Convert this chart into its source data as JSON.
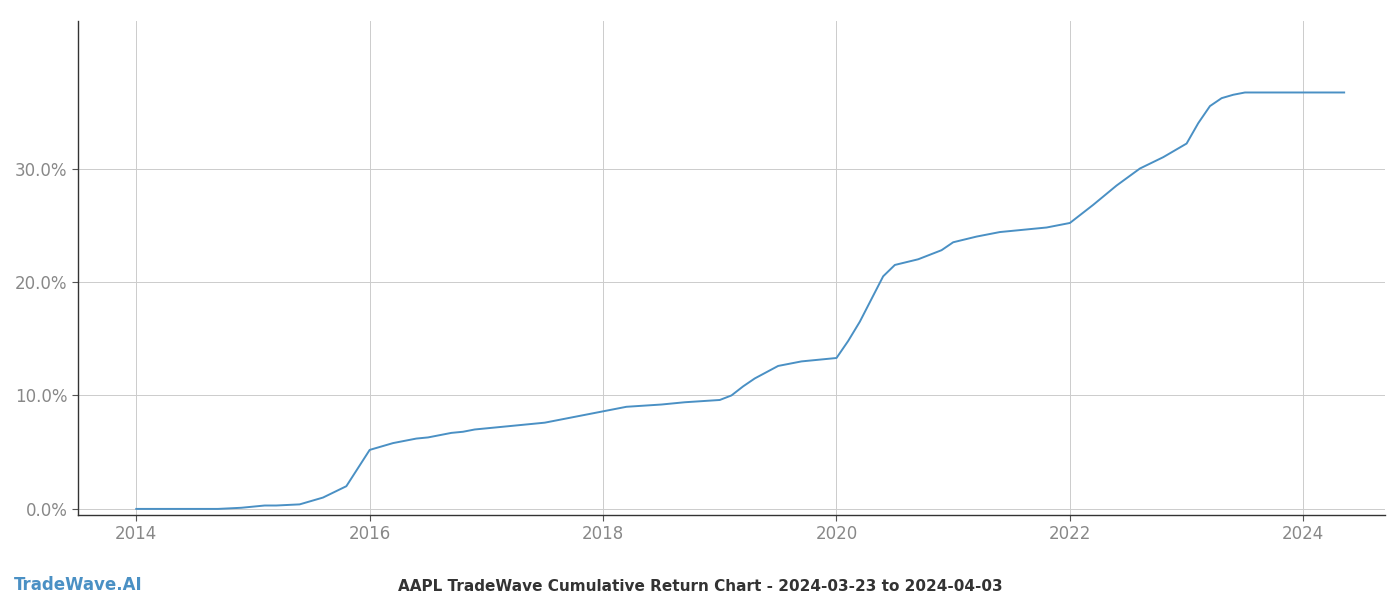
{
  "title": "AAPL TradeWave Cumulative Return Chart - 2024-03-23 to 2024-04-03",
  "watermark": "TradeWave.AI",
  "line_color": "#4a90c4",
  "background_color": "#ffffff",
  "grid_color": "#cccccc",
  "text_color": "#888888",
  "years": [
    2014.0,
    2014.1,
    2014.2,
    2014.3,
    2014.5,
    2014.7,
    2014.9,
    2015.0,
    2015.1,
    2015.2,
    2015.4,
    2015.6,
    2015.8,
    2016.0,
    2016.2,
    2016.4,
    2016.5,
    2016.6,
    2016.7,
    2016.8,
    2016.9,
    2017.0,
    2017.1,
    2017.2,
    2017.3,
    2017.5,
    2017.7,
    2018.0,
    2018.2,
    2018.5,
    2018.7,
    2019.0,
    2019.1,
    2019.2,
    2019.3,
    2019.5,
    2019.7,
    2019.9,
    2020.0,
    2020.1,
    2020.2,
    2020.3,
    2020.4,
    2020.5,
    2020.7,
    2020.9,
    2021.0,
    2021.2,
    2021.4,
    2021.6,
    2021.8,
    2022.0,
    2022.2,
    2022.4,
    2022.6,
    2022.8,
    2023.0,
    2023.1,
    2023.2,
    2023.3,
    2023.4,
    2023.5,
    2024.0,
    2024.2,
    2024.35
  ],
  "values": [
    0.0,
    0.0,
    0.0,
    0.0,
    0.0,
    0.0,
    0.001,
    0.002,
    0.003,
    0.003,
    0.004,
    0.01,
    0.02,
    0.052,
    0.058,
    0.062,
    0.063,
    0.065,
    0.067,
    0.068,
    0.07,
    0.071,
    0.072,
    0.073,
    0.074,
    0.076,
    0.08,
    0.086,
    0.09,
    0.092,
    0.094,
    0.096,
    0.1,
    0.108,
    0.115,
    0.126,
    0.13,
    0.132,
    0.133,
    0.148,
    0.165,
    0.185,
    0.205,
    0.215,
    0.22,
    0.228,
    0.235,
    0.24,
    0.244,
    0.246,
    0.248,
    0.252,
    0.268,
    0.285,
    0.3,
    0.31,
    0.322,
    0.34,
    0.355,
    0.362,
    0.365,
    0.367,
    0.367,
    0.367,
    0.367
  ],
  "xlim": [
    2013.5,
    2024.7
  ],
  "ylim": [
    -0.005,
    0.43
  ],
  "xticks": [
    2014,
    2016,
    2018,
    2020,
    2022,
    2024
  ],
  "yticks": [
    0.0,
    0.1,
    0.2,
    0.3
  ],
  "ytick_labels": [
    "0.0%",
    "10.0%",
    "20.0%",
    "30.0%"
  ],
  "line_width": 1.4,
  "title_fontsize": 11,
  "tick_fontsize": 12,
  "watermark_fontsize": 12
}
